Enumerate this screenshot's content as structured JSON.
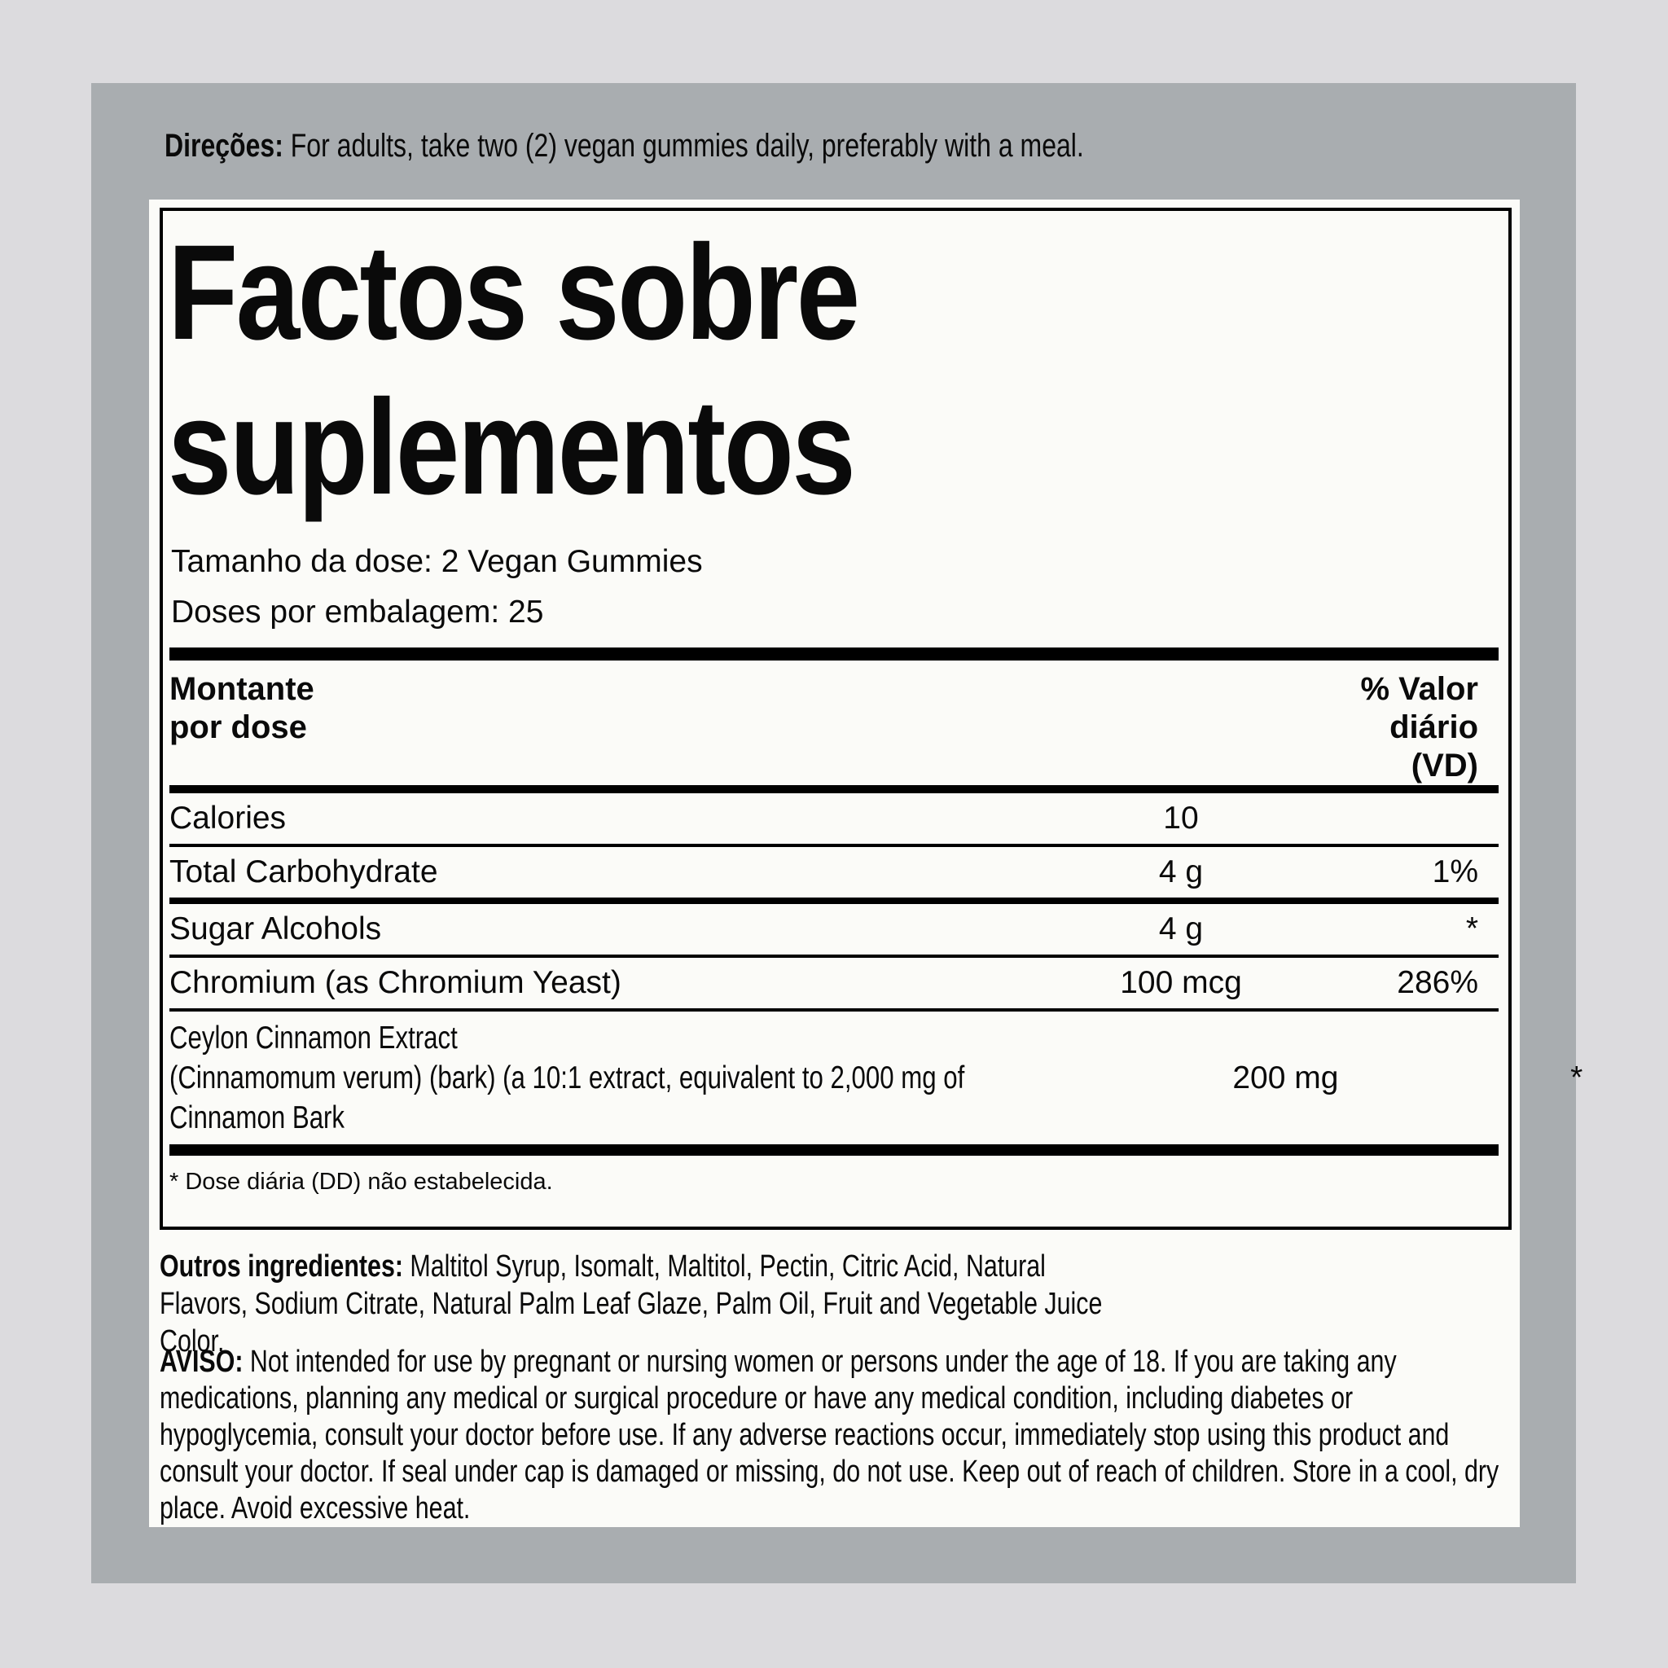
{
  "directions": {
    "label": "Direções:",
    "text": "For adults, take two (2) vegan gummies daily, preferably with a meal."
  },
  "supplement_facts": {
    "title_line1": "Factos sobre",
    "title_line2": "suplementos",
    "serving_size": "Tamanho da dose: 2 Vegan Gummies",
    "servings_per_container": "Doses por embalagem: 25",
    "columns": {
      "amount_line1": "Montante",
      "amount_line2": "por dose",
      "dv_line1": "% Valor",
      "dv_line2": "diário",
      "dv_line3": "(VD)"
    },
    "rows": [
      {
        "name": "Calories",
        "amount": "10",
        "dv": ""
      },
      {
        "name": "Total Carbohydrate",
        "amount": "4 g",
        "dv": "1%"
      },
      {
        "name": "Sugar Alcohols",
        "amount": "4 g",
        "dv": "*"
      },
      {
        "name": "Chromium (as Chromium Yeast)",
        "amount": "100 mcg",
        "dv": "286%"
      },
      {
        "name_lines": [
          "Ceylon Cinnamon Extract",
          "(Cinnamomum verum) (bark) (a 10:1 extract, equivalent to 2,000 mg of",
          "Cinnamon Bark"
        ],
        "amount": "200 mg",
        "dv": "*"
      }
    ],
    "footnote": "* Dose diária (DD) não estabelecida."
  },
  "other_ingredients": {
    "label": "Outros ingredientes:",
    "text": "Maltitol Syrup, Isomalt, Maltitol, Pectin, Citric Acid, Natural Flavors, Sodium Citrate, Natural Palm Leaf Glaze, Palm Oil, Fruit and Vegetable Juice Color."
  },
  "warning": {
    "label": "AVISO:",
    "text": "Not intended for use by pregnant or nursing women or persons under the age of 18. If you are taking any medications, planning any medical or surgical procedure or have any medical condition, including diabetes or hypoglycemia, consult your doctor before use. If any adverse reactions occur, immediately stop using this product and consult your doctor. If seal under cap is damaged or missing, do not use. Keep out of reach of children. Store in a cool, dry place. Avoid excessive heat."
  },
  "colors": {
    "background": "#dcdbde",
    "panel": "#a9adb0",
    "label_bg": "#fbfbf8",
    "text": "#0a0a0a"
  }
}
